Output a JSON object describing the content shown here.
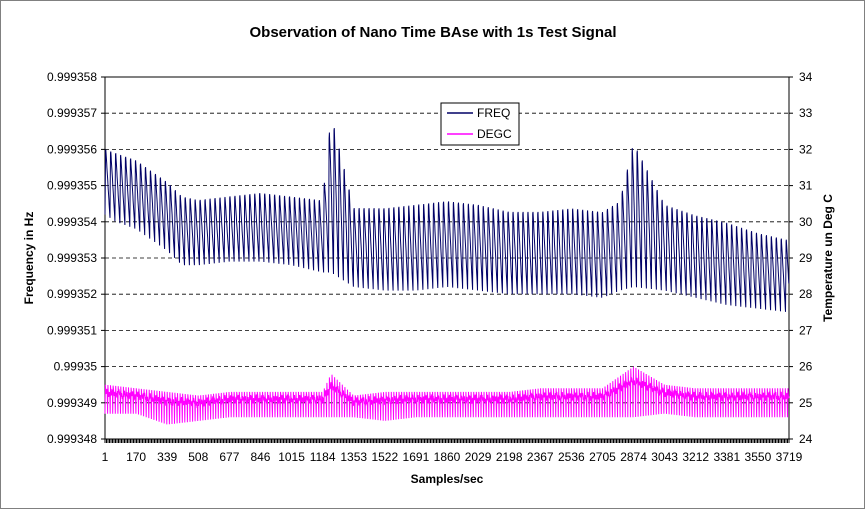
{
  "chart_data": {
    "type": "line",
    "title": "Observation of Nano Time BAse with 1s Test Signal",
    "xlabel": "Samples/sec",
    "ylabel_left": "Frequency in Hz",
    "ylabel_right": "Temperature un Deg C",
    "x_range": [
      1,
      3719
    ],
    "x_tick_labels": [
      "1",
      "170",
      "339",
      "508",
      "677",
      "846",
      "1015",
      "1184",
      "1353",
      "1522",
      "1691",
      "1860",
      "2029",
      "2198",
      "2367",
      "2536",
      "2705",
      "2874",
      "3043",
      "3212",
      "3381",
      "3550",
      "3719"
    ],
    "ylim_left": [
      0.999348,
      0.999358
    ],
    "y_tick_labels_left": [
      "0.999358",
      "0.999357",
      "0.999356",
      "0.999355",
      "0.999354",
      "0.999353",
      "0.999352",
      "0.999351",
      "0.99935",
      "0.999349",
      "0.999348"
    ],
    "ylim_right": [
      24,
      34
    ],
    "y_tick_labels_right": [
      "34",
      "33",
      "32",
      "31",
      "30",
      "29",
      "28",
      "27",
      "26",
      "25",
      "24"
    ],
    "grid": "horizontal dashed",
    "legend_position": "top-center",
    "series": [
      {
        "name": "FREQ",
        "axis": "left",
        "color": "#000066",
        "x": [
          1,
          60,
          170,
          339,
          420,
          508,
          677,
          846,
          1015,
          1184,
          1230,
          1353,
          1522,
          1691,
          1860,
          2029,
          2198,
          2367,
          2536,
          2705,
          2800,
          2874,
          3043,
          3212,
          3381,
          3550,
          3719
        ],
        "y_max": [
          0.9993561,
          0.999356,
          0.9993558,
          0.9993552,
          0.9993548,
          0.9993547,
          0.9993548,
          0.9993549,
          0.9993548,
          0.9993547,
          0.9993572,
          0.9993545,
          0.9993545,
          0.9993546,
          0.9993547,
          0.9993546,
          0.9993544,
          0.9993544,
          0.9993545,
          0.9993544,
          0.9993547,
          0.9993564,
          0.9993546,
          0.9993543,
          0.9993541,
          0.9993538,
          0.9993536
        ],
        "y_min": [
          0.9993542,
          0.999354,
          0.9993538,
          0.9993532,
          0.9993528,
          0.9993528,
          0.9993529,
          0.9993529,
          0.9993528,
          0.9993526,
          0.9993526,
          0.9993522,
          0.9993521,
          0.9993521,
          0.9993522,
          0.9993521,
          0.999352,
          0.999352,
          0.999352,
          0.9993519,
          0.9993521,
          0.9993522,
          0.9993521,
          0.9993519,
          0.9993517,
          0.9993516,
          0.9993515
        ]
      },
      {
        "name": "DEGC",
        "axis": "right",
        "color": "#ff00ff",
        "x": [
          1,
          170,
          339,
          508,
          677,
          846,
          1015,
          1184,
          1230,
          1353,
          1522,
          1691,
          1860,
          2029,
          2198,
          2367,
          2536,
          2705,
          2874,
          3043,
          3212,
          3381,
          3550,
          3719
        ],
        "y_max": [
          25.5,
          25.4,
          25.3,
          25.2,
          25.3,
          25.3,
          25.3,
          25.3,
          25.8,
          25.2,
          25.3,
          25.3,
          25.3,
          25.3,
          25.3,
          25.4,
          25.4,
          25.4,
          26.0,
          25.5,
          25.4,
          25.4,
          25.4,
          25.4
        ],
        "y_min": [
          24.7,
          24.7,
          24.4,
          24.5,
          24.6,
          24.6,
          24.6,
          24.6,
          24.6,
          24.6,
          24.5,
          24.6,
          24.6,
          24.6,
          24.6,
          24.6,
          24.6,
          24.6,
          24.6,
          24.7,
          24.6,
          24.6,
          24.6,
          24.6
        ]
      }
    ]
  }
}
